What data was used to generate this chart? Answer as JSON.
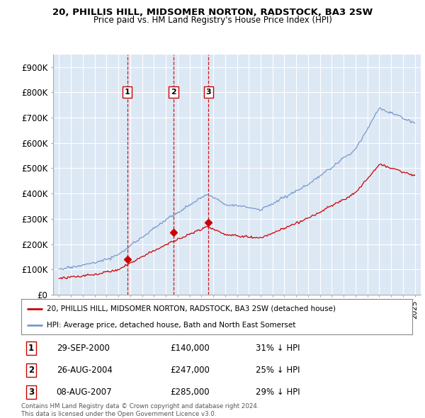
{
  "title_line1": "20, PHILLIS HILL, MIDSOMER NORTON, RADSTOCK, BA3 2SW",
  "title_line2": "Price paid vs. HM Land Registry's House Price Index (HPI)",
  "ylabel_ticks": [
    "£0",
    "£100K",
    "£200K",
    "£300K",
    "£400K",
    "£500K",
    "£600K",
    "£700K",
    "£800K",
    "£900K"
  ],
  "ytick_vals": [
    0,
    100000,
    200000,
    300000,
    400000,
    500000,
    600000,
    700000,
    800000,
    900000
  ],
  "ylim": [
    0,
    950000
  ],
  "xlim_start": 1994.5,
  "xlim_end": 2025.5,
  "xticks": [
    1995,
    1996,
    1997,
    1998,
    1999,
    2000,
    2001,
    2002,
    2003,
    2004,
    2005,
    2006,
    2007,
    2008,
    2009,
    2010,
    2011,
    2012,
    2013,
    2014,
    2015,
    2016,
    2017,
    2018,
    2019,
    2020,
    2021,
    2022,
    2023,
    2024,
    2025
  ],
  "sale_color": "#cc0000",
  "hpi_color": "#7799cc",
  "sale_dates": [
    2000.75,
    2004.65,
    2007.6
  ],
  "sale_prices": [
    140000,
    247000,
    285000
  ],
  "vline_color": "#cc0000",
  "marker_labels": [
    "1",
    "2",
    "3"
  ],
  "marker_y": 800000,
  "legend_sale_label": "20, PHILLIS HILL, MIDSOMER NORTON, RADSTOCK, BA3 2SW (detached house)",
  "legend_hpi_label": "HPI: Average price, detached house, Bath and North East Somerset",
  "table_rows": [
    {
      "num": "1",
      "date": "29-SEP-2000",
      "price": "£140,000",
      "pct": "31% ↓ HPI"
    },
    {
      "num": "2",
      "date": "26-AUG-2004",
      "price": "£247,000",
      "pct": "25% ↓ HPI"
    },
    {
      "num": "3",
      "date": "08-AUG-2007",
      "price": "£285,000",
      "pct": "29% ↓ HPI"
    }
  ],
  "footer_text": "Contains HM Land Registry data © Crown copyright and database right 2024.\nThis data is licensed under the Open Government Licence v3.0.",
  "bg_color": "#ffffff",
  "plot_bg_color": "#dde8f5",
  "grid_color": "#ffffff"
}
